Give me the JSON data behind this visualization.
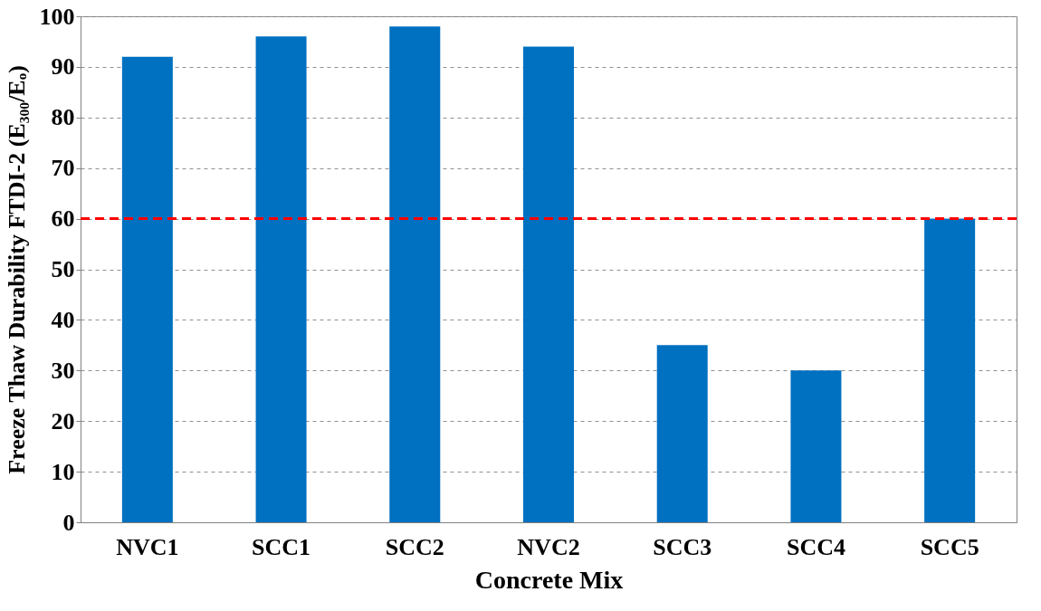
{
  "chart_data": {
    "type": "bar",
    "xlabel": "Concrete Mix",
    "ylabel": "Freeze Thaw Durability FTDI-2 (E₃₀₀/Eₒ)",
    "categories": [
      "NVC1",
      "SCC1",
      "SCC2",
      "NVC2",
      "SCC3",
      "SCC4",
      "SCC5"
    ],
    "values": [
      92,
      96,
      98,
      94,
      35,
      30,
      60
    ],
    "color": "#0070c0",
    "ylim": [
      0,
      100
    ],
    "yticks": [
      0,
      10,
      20,
      30,
      40,
      50,
      60,
      70,
      80,
      90,
      100
    ],
    "grid": "y",
    "ref_lines": [
      {
        "axis": "y",
        "value": 60,
        "color": "#ff0000",
        "line_style": "dashed"
      }
    ]
  }
}
